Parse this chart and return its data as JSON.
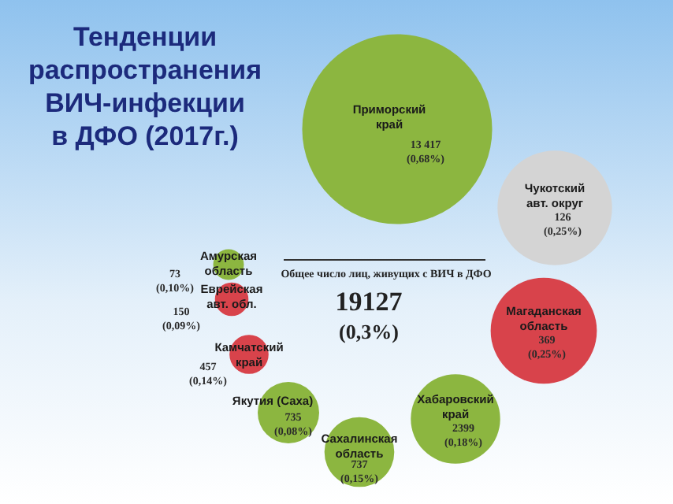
{
  "chart_data": {
    "type": "other",
    "title": "Тенденции\nраспространения\nВИЧ-инфекции\nв ДФО (2017г.)",
    "categories": [
      "Приморский\nкрай",
      "Чукотский\nавт. округ",
      "Магаданская\nобласть",
      "Хабаровский\nкрай",
      "Сахалинская\nобласть",
      "Якутия (Саха)",
      "Камчатский\nкрай",
      "Еврейская\nавт. обл.",
      "Амурская\nобласть"
    ],
    "values": [
      13417,
      126,
      369,
      2399,
      737,
      735,
      457,
      150,
      73
    ],
    "data_labels": true,
    "colors": [
      "#8cb640",
      "#d4d4d4",
      "#d8434b",
      "#8cb640",
      "#8cb640",
      "#8cb640",
      "#d8434b",
      "#d8434b",
      "#8cb640"
    ],
    "annotations": [
      "Общее число лиц, живущих с ВИЧ в ДФО",
      "19127",
      "(0,3%)",
      {
        "text": "(0,68%)",
        "x": "Приморский\nкрай"
      },
      {
        "text": "(0,25%)",
        "x": "Чукотский\nавт. округ"
      },
      {
        "text": "(0,25%)",
        "x": "Магаданская\nобласть"
      },
      {
        "text": "(0,18%)",
        "x": "Хабаровский\nкрай"
      },
      {
        "text": "(0,15%)",
        "x": "Сахалинская\nобласть"
      },
      {
        "text": "(0,08%)",
        "x": "Якутия (Саха)"
      },
      {
        "text": "(0,14%)",
        "x": "Камчатский\nкрай"
      },
      {
        "text": "(0,09%)",
        "x": "Еврейская\nавт. обл."
      },
      {
        "text": "(0,10%)",
        "x": "Амурская\nобласть"
      }
    ]
  }
}
